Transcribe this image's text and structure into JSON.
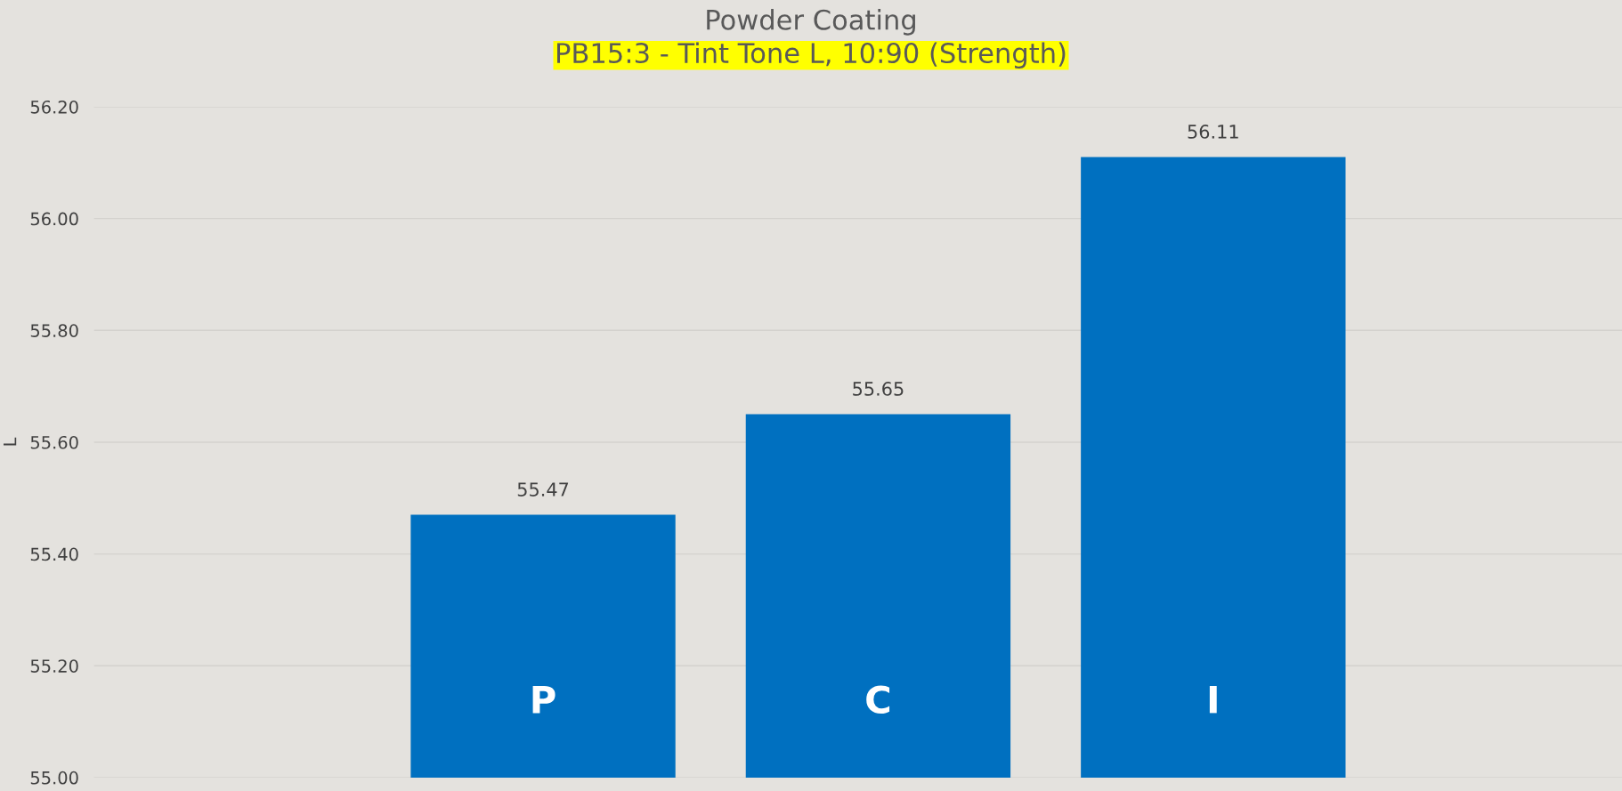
{
  "chart_data": {
    "type": "bar",
    "title": "Powder Coating",
    "subtitle": "PB15:3 - Tint Tone L, 10:90 (Strength)",
    "ylabel": "L",
    "categories": [
      "P",
      "C",
      "I"
    ],
    "values": [
      55.47,
      55.65,
      56.11
    ],
    "color": "#0070c0",
    "ylim": [
      55.0,
      56.2
    ],
    "yticks": [
      {
        "value": 55.0,
        "label": "55.00"
      },
      {
        "value": 55.2,
        "label": "55.20"
      },
      {
        "value": 55.4,
        "label": "55.40"
      },
      {
        "value": 55.6,
        "label": "55.60"
      },
      {
        "value": 55.8,
        "label": "55.80"
      },
      {
        "value": 56.0,
        "label": "56.00"
      },
      {
        "value": 56.2,
        "label": "56.20"
      }
    ],
    "grid": "y",
    "data_labels": true,
    "legend": false
  }
}
